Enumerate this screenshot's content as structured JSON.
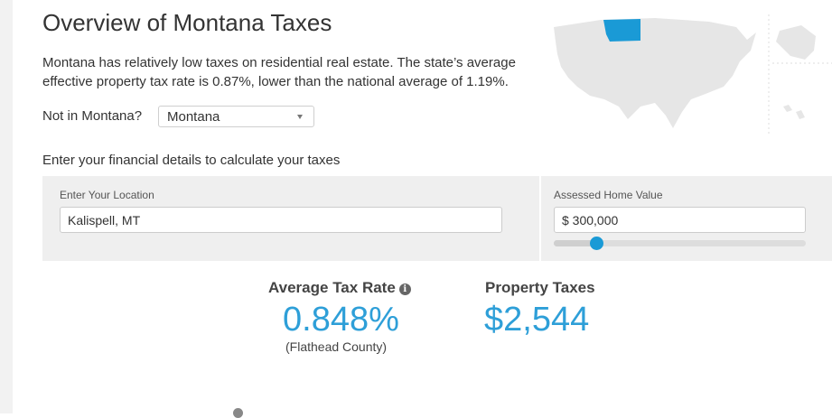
{
  "header": {
    "title": "Overview of Montana Taxes",
    "intro": "Montana has relatively low taxes on residential real estate. The state’s average effective property tax rate is 0.87%, lower than the national average of 1.19%."
  },
  "state_selector": {
    "label": "Not in Montana?",
    "value": "Montana"
  },
  "map": {
    "highlighted_state": "Montana",
    "highlight_color": "#1a9ad6",
    "base_color": "#e6e6e6"
  },
  "calculator": {
    "section_label": "Enter your financial details to calculate your taxes",
    "location": {
      "label": "Enter Your Location",
      "value": "Kalispell, MT"
    },
    "home_value": {
      "label": "Assessed Home Value",
      "value": "$ 300,000",
      "slider_fraction": 0.17
    }
  },
  "results": {
    "tax_rate": {
      "label": "Average Tax Rate",
      "value": "0.848%",
      "sub": "(Flathead County)"
    },
    "property_taxes": {
      "label": "Property Taxes",
      "value": "$2,544"
    }
  },
  "colors": {
    "accent": "#2e9fd8",
    "panel": "#efefef"
  }
}
